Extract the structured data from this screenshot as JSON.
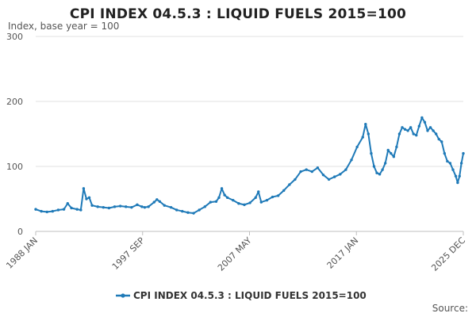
{
  "chart_data": {
    "type": "line",
    "title": "CPI INDEX 04.5.3 : LIQUID FUELS 2015=100",
    "subtitle": "Index, base year = 100",
    "xlabel": "",
    "ylabel": "",
    "ylim": [
      0,
      300
    ],
    "yticks": [
      "0",
      "100",
      "200",
      "300"
    ],
    "xticks": [
      "1988 JAN",
      "1997 SEP",
      "2007 MAY",
      "2017 JAN",
      "2025 DEC"
    ],
    "xrange": [
      "1988-01",
      "2025-12"
    ],
    "grid": true,
    "legend_position": "bottom",
    "source_label": "Source:",
    "colors": {
      "series": "#1f7ab8",
      "grid": "#e0e0e0",
      "axis": "#bfbfbf"
    },
    "series": [
      {
        "name": "CPI INDEX 04.5.3 : LIQUID FUELS 2015=100",
        "points": [
          [
            "1988-01",
            34
          ],
          [
            "1988-07",
            31
          ],
          [
            "1989-01",
            30
          ],
          [
            "1989-07",
            31
          ],
          [
            "1990-01",
            33
          ],
          [
            "1990-07",
            34
          ],
          [
            "1990-11",
            43
          ],
          [
            "1991-03",
            36
          ],
          [
            "1991-09",
            34
          ],
          [
            "1992-01",
            33
          ],
          [
            "1992-04",
            66
          ],
          [
            "1992-07",
            50
          ],
          [
            "1992-10",
            52
          ],
          [
            "1993-01",
            40
          ],
          [
            "1993-07",
            38
          ],
          [
            "1994-01",
            37
          ],
          [
            "1994-07",
            36
          ],
          [
            "1995-01",
            38
          ],
          [
            "1995-07",
            39
          ],
          [
            "1996-01",
            38
          ],
          [
            "1996-07",
            37
          ],
          [
            "1997-01",
            41
          ],
          [
            "1997-06",
            38
          ],
          [
            "1997-09",
            37
          ],
          [
            "1998-01",
            38
          ],
          [
            "1998-07",
            45
          ],
          [
            "1998-10",
            49
          ],
          [
            "1999-01",
            46
          ],
          [
            "1999-06",
            40
          ],
          [
            "2000-01",
            37
          ],
          [
            "2000-07",
            33
          ],
          [
            "2001-01",
            31
          ],
          [
            "2001-07",
            29
          ],
          [
            "2002-01",
            28
          ],
          [
            "2002-07",
            33
          ],
          [
            "2003-01",
            38
          ],
          [
            "2003-07",
            45
          ],
          [
            "2004-01",
            46
          ],
          [
            "2004-04",
            52
          ],
          [
            "2004-07",
            66
          ],
          [
            "2004-10",
            56
          ],
          [
            "2005-01",
            52
          ],
          [
            "2005-07",
            48
          ],
          [
            "2006-01",
            43
          ],
          [
            "2006-07",
            41
          ],
          [
            "2007-01",
            44
          ],
          [
            "2007-07",
            52
          ],
          [
            "2007-10",
            61
          ],
          [
            "2008-01",
            45
          ],
          [
            "2008-07",
            48
          ],
          [
            "2009-01",
            53
          ],
          [
            "2009-07",
            55
          ],
          [
            "2010-01",
            63
          ],
          [
            "2010-07",
            72
          ],
          [
            "2011-01",
            80
          ],
          [
            "2011-07",
            92
          ],
          [
            "2012-01",
            95
          ],
          [
            "2012-07",
            92
          ],
          [
            "2013-01",
            98
          ],
          [
            "2013-07",
            87
          ],
          [
            "2014-01",
            80
          ],
          [
            "2014-07",
            84
          ],
          [
            "2015-01",
            88
          ],
          [
            "2015-07",
            95
          ],
          [
            "2016-01",
            110
          ],
          [
            "2016-07",
            130
          ],
          [
            "2017-01",
            145
          ],
          [
            "2017-04",
            165
          ],
          [
            "2017-07",
            150
          ],
          [
            "2017-10",
            120
          ],
          [
            "2018-01",
            100
          ],
          [
            "2018-04",
            90
          ],
          [
            "2018-07",
            88
          ],
          [
            "2018-10",
            95
          ],
          [
            "2019-01",
            105
          ],
          [
            "2019-04",
            125
          ],
          [
            "2019-07",
            120
          ],
          [
            "2019-10",
            115
          ],
          [
            "2020-01",
            130
          ],
          [
            "2020-04",
            150
          ],
          [
            "2020-07",
            160
          ],
          [
            "2020-10",
            157
          ],
          [
            "2021-01",
            155
          ],
          [
            "2021-04",
            160
          ],
          [
            "2021-07",
            150
          ],
          [
            "2021-10",
            148
          ],
          [
            "2022-01",
            162
          ],
          [
            "2022-04",
            175
          ],
          [
            "2022-07",
            168
          ],
          [
            "2022-10",
            155
          ],
          [
            "2023-01",
            160
          ],
          [
            "2023-04",
            155
          ],
          [
            "2023-07",
            150
          ],
          [
            "2023-10",
            142
          ],
          [
            "2024-01",
            138
          ],
          [
            "2024-04",
            120
          ],
          [
            "2024-07",
            108
          ],
          [
            "2024-10",
            105
          ],
          [
            "2025-01",
            95
          ],
          [
            "2025-04",
            85
          ],
          [
            "2025-06",
            75
          ],
          [
            "2025-08",
            85
          ],
          [
            "2025-10",
            105
          ],
          [
            "2025-12",
            120
          ]
        ]
      }
    ]
  }
}
